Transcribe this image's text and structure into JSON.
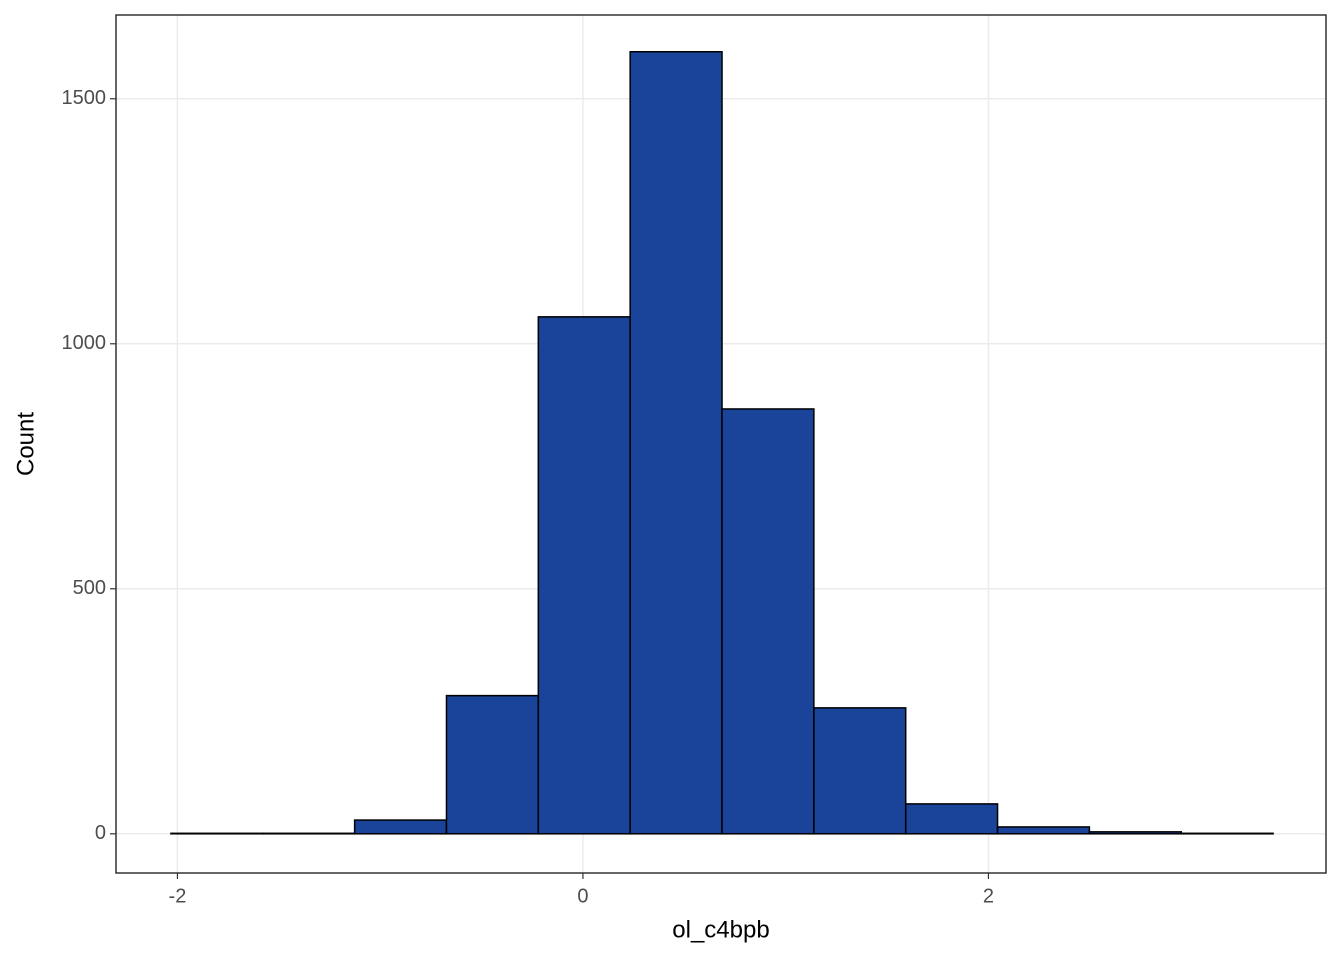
{
  "chart_data": {
    "type": "histogram",
    "x_label": "ol_c4bpb",
    "y_label": "Count",
    "bins": [
      -2.032,
      -1.579,
      -1.126,
      -0.673,
      -0.22,
      0.233,
      0.686,
      1.139,
      1.592,
      2.045,
      2.498,
      2.951,
      3.404
    ],
    "values": [
      1,
      1,
      28,
      282,
      1055,
      1596,
      867,
      257,
      61,
      14,
      4,
      1
    ],
    "color": "#1a439a",
    "xlim": [
      -2.303,
      3.665
    ],
    "xticks": [
      -2,
      0,
      2
    ],
    "ylim": [
      -80,
      1671
    ],
    "yticks": [
      0,
      500,
      1000,
      1500
    ],
    "grid": true
  }
}
